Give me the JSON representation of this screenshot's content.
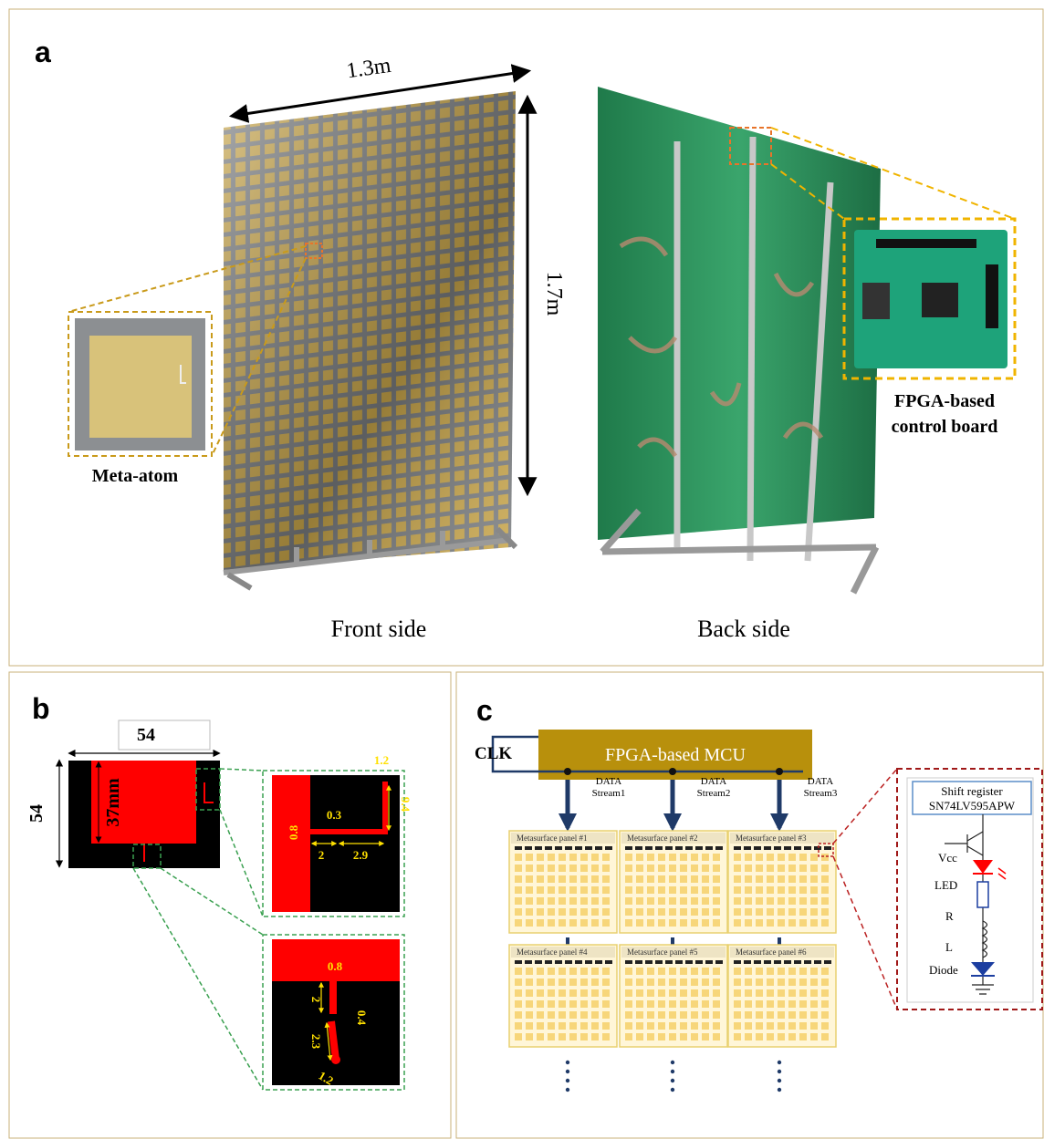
{
  "panel_a": {
    "label": "a",
    "width_label": "1.3m",
    "height_label": "1.7m",
    "inset_label": "Meta-atom",
    "board_label": [
      "FPGA-based",
      "control board"
    ],
    "front_caption": "Front side",
    "back_caption": "Back side"
  },
  "panel_b": {
    "label": "b",
    "width": "54",
    "height": "54",
    "patch": "37mm",
    "zoom1": [
      "1.2",
      "9.4",
      "0.3",
      "0.8",
      "2",
      "2.9"
    ],
    "zoom2": [
      "0.8",
      "2",
      "0.4",
      "2.3",
      "1.2"
    ]
  },
  "panel_c": {
    "label": "c",
    "mcu": "FPGA-based MCU",
    "clk": "CLK",
    "streams": [
      [
        "DATA",
        "Stream1"
      ],
      [
        "DATA",
        "Stream2"
      ],
      [
        "DATA",
        "Stream3"
      ]
    ],
    "panels": [
      "Metasurface panel #1",
      "Metasurface panel #2",
      "Metasurface panel #3",
      "Metasurface panel #4",
      "Metasurface panel #5",
      "Metasurface panel #6"
    ],
    "circuit": {
      "title": [
        "Shift register",
        "SN74LV595APW"
      ],
      "labels": [
        "Vcc",
        "LED",
        "R",
        "L",
        "Diode"
      ]
    }
  }
}
